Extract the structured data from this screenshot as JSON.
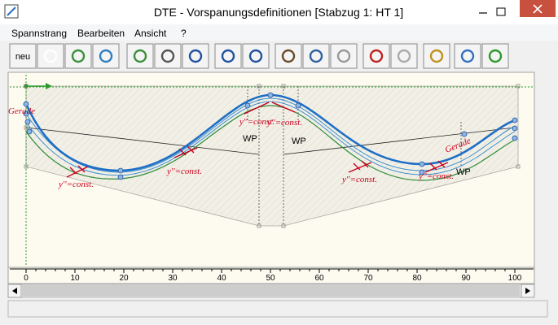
{
  "window": {
    "title": "DTE - Vorspanungsdefinitionen  [Stabzug 1: HT 1]"
  },
  "menu": [
    "Spannstrang",
    "Bearbeiten",
    "Ansicht",
    "?"
  ],
  "toolbar": {
    "new_button": "neu"
  },
  "drawing": {
    "annotations": [
      "Gerade",
      "y''=const.",
      "y''=const.",
      "y''=const.",
      "y''=const.",
      "WP",
      "WP",
      "y''=const.",
      "y''=const.",
      "Gerade",
      "WP"
    ]
  },
  "ruler": {
    "ticks": [
      0,
      10,
      20,
      30,
      40,
      50,
      60,
      70,
      80,
      90,
      100
    ]
  }
}
